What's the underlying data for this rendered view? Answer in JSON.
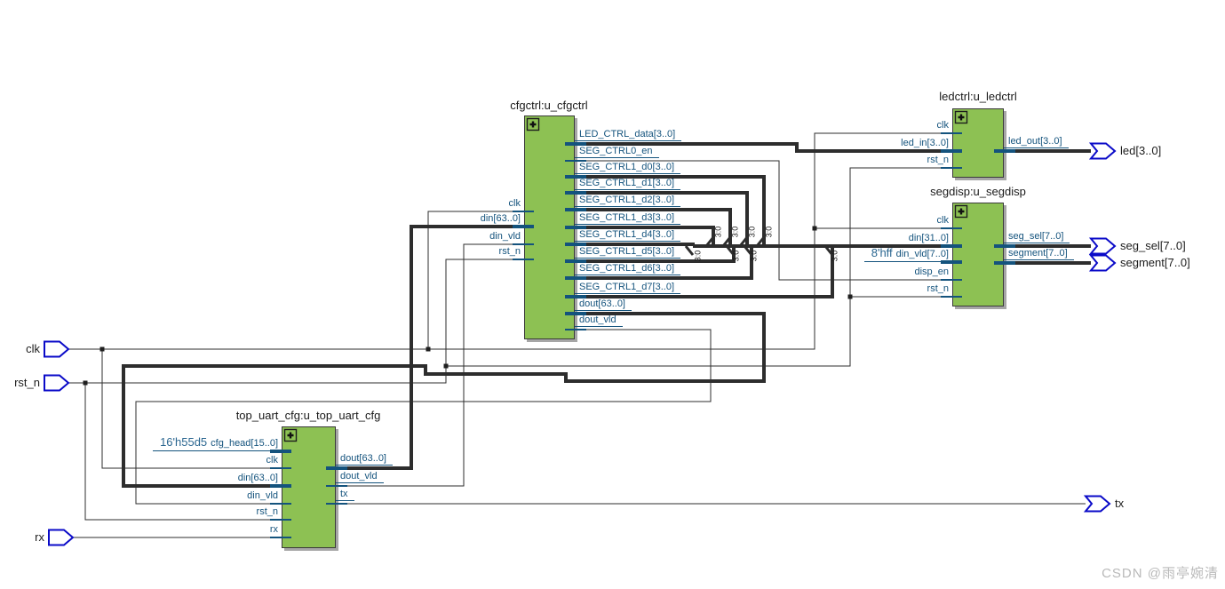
{
  "schematic": {
    "watermark": "CSDN @雨亭婉清",
    "ripper_label": "3:0",
    "colors": {
      "block_fill": "#8dc153",
      "pin_text": "#14537d",
      "const_text": "#2a6690",
      "wire": "#2d2d2d",
      "port_outline": "#0a0ac8",
      "watermark": "#b9b9b9"
    },
    "input_ports": [
      {
        "name": "clk"
      },
      {
        "name": "rst_n"
      },
      {
        "name": "rx"
      }
    ],
    "output_ports": [
      {
        "name": "led[3..0]"
      },
      {
        "name": "seg_sel[7..0]"
      },
      {
        "name": "segment[7..0]"
      },
      {
        "name": "tx"
      }
    ],
    "blocks": [
      {
        "title": "cfgctrl:u_cfgctrl",
        "left_pins": [
          {
            "name": "clk"
          },
          {
            "name": "din[63..0]"
          },
          {
            "name": "din_vld"
          },
          {
            "name": "rst_n"
          }
        ],
        "right_pins": [
          {
            "name": "LED_CTRL_data[3..0]"
          },
          {
            "name": "SEG_CTRL0_en"
          },
          {
            "name": "SEG_CTRL1_d0[3..0]"
          },
          {
            "name": "SEG_CTRL1_d1[3..0]"
          },
          {
            "name": "SEG_CTRL1_d2[3..0]"
          },
          {
            "name": "SEG_CTRL1_d3[3..0]"
          },
          {
            "name": "SEG_CTRL1_d4[3..0]"
          },
          {
            "name": "SEG_CTRL1_d5[3..0]"
          },
          {
            "name": "SEG_CTRL1_d6[3..0]"
          },
          {
            "name": "SEG_CTRL1_d7[3..0]"
          },
          {
            "name": "dout[63..0]"
          },
          {
            "name": "dout_vld"
          }
        ]
      },
      {
        "title": "ledctrl:u_ledctrl",
        "left_pins": [
          {
            "name": "clk"
          },
          {
            "name": "led_in[3..0]"
          },
          {
            "name": "rst_n"
          }
        ],
        "right_pins": [
          {
            "name": "led_out[3..0]"
          }
        ]
      },
      {
        "title": "segdisp:u_segdisp",
        "left_pins": [
          {
            "name": "clk"
          },
          {
            "name": "din[31..0]"
          },
          {
            "name": "din_vld[7..0]",
            "const": "8'hff"
          },
          {
            "name": "disp_en"
          },
          {
            "name": "rst_n"
          }
        ],
        "right_pins": [
          {
            "name": "seg_sel[7..0]"
          },
          {
            "name": "segment[7..0]"
          }
        ]
      },
      {
        "title": "top_uart_cfg:u_top_uart_cfg",
        "left_pins": [
          {
            "name": "cfg_head[15..0]",
            "const": "16'h55d5"
          },
          {
            "name": "clk"
          },
          {
            "name": "din[63..0]"
          },
          {
            "name": "din_vld"
          },
          {
            "name": "rst_n"
          },
          {
            "name": "rx"
          }
        ],
        "right_pins": [
          {
            "name": "dout[63..0]"
          },
          {
            "name": "dout_vld"
          },
          {
            "name": "tx"
          }
        ]
      }
    ]
  }
}
